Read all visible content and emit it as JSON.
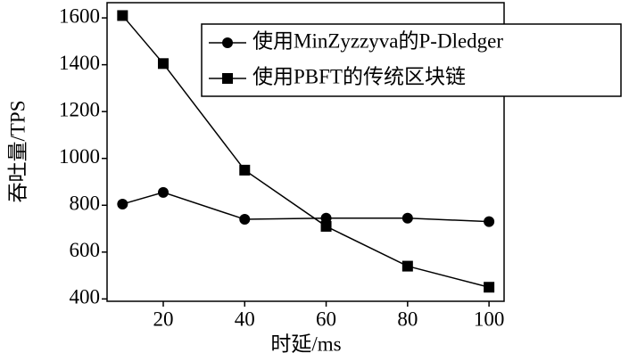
{
  "chart_data": {
    "type": "line",
    "xlabel": "时延/ms",
    "ylabel": "吞吐量/TPS",
    "x": [
      10,
      20,
      40,
      60,
      80,
      100
    ],
    "series": [
      {
        "name": "使用MinZyzzyva的P-Dledger",
        "color": "#000000",
        "marker": "circle",
        "values": [
          805,
          855,
          740,
          745,
          745,
          730
        ]
      },
      {
        "name": "使用PBFT的传统区块链",
        "color": "#000000",
        "marker": "square",
        "values": [
          1610,
          1405,
          950,
          710,
          540,
          450
        ]
      }
    ],
    "xlim": [
      6.2,
      103.7
    ],
    "xticks": [
      20,
      40,
      60,
      80,
      100
    ],
    "ylim": [
      390,
      1665
    ],
    "yticks": [
      400,
      600,
      800,
      1000,
      1200,
      1400,
      1600
    ],
    "legend": "upper right",
    "grid": false
  }
}
